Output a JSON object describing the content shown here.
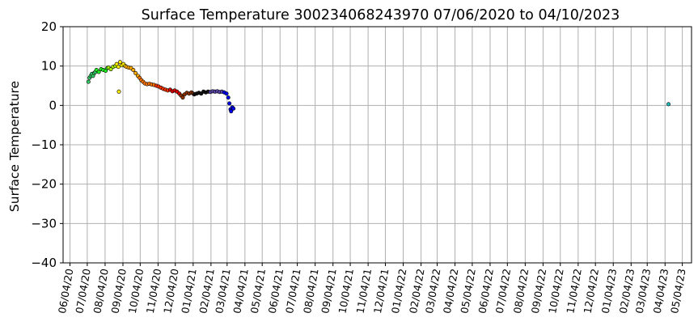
{
  "chart_data": {
    "type": "scatter",
    "title": "Surface Temperature 300234068243970  07/06/2020 to 04/10/2023",
    "xlabel": "",
    "ylabel": "Surface Temperature",
    "ylim": [
      -40,
      20
    ],
    "xlim": [
      "2020-05-23",
      "2023-05-20"
    ],
    "grid": true,
    "legend": "none",
    "yticks": [
      20,
      10,
      0,
      -10,
      -20,
      -30,
      -40
    ],
    "ytick_labels": [
      "20",
      "10",
      "0",
      "−10",
      "−20",
      "−30",
      "−40"
    ],
    "xticks": [
      "2020-06-04",
      "2020-07-04",
      "2020-08-04",
      "2020-09-04",
      "2020-10-04",
      "2020-11-04",
      "2020-12-04",
      "2021-01-04",
      "2021-02-04",
      "2021-03-04",
      "2021-04-04",
      "2021-05-04",
      "2021-06-04",
      "2021-07-04",
      "2021-08-04",
      "2021-09-04",
      "2021-10-04",
      "2021-11-04",
      "2021-12-04",
      "2022-01-04",
      "2022-02-04",
      "2022-03-04",
      "2022-04-04",
      "2022-05-04",
      "2022-06-04",
      "2022-07-04",
      "2022-08-04",
      "2022-09-04",
      "2022-10-04",
      "2022-11-04",
      "2022-12-04",
      "2023-01-04",
      "2023-02-04",
      "2023-03-04",
      "2023-04-04",
      "2023-05-04"
    ],
    "xtick_labels": [
      "06/04/20",
      "07/04/20",
      "08/04/20",
      "09/04/20",
      "10/04/20",
      "11/04/20",
      "12/04/20",
      "01/04/21",
      "02/04/21",
      "03/04/21",
      "04/04/21",
      "05/04/21",
      "06/04/21",
      "07/04/21",
      "08/04/21",
      "09/04/21",
      "10/04/21",
      "11/04/21",
      "12/04/21",
      "01/04/22",
      "02/04/22",
      "03/04/22",
      "04/04/22",
      "05/04/22",
      "06/04/22",
      "07/04/22",
      "08/04/22",
      "09/04/22",
      "10/04/22",
      "11/04/22",
      "12/04/22",
      "01/04/23",
      "02/04/23",
      "03/04/23",
      "04/04/23",
      "05/04/23"
    ],
    "series": [
      {
        "color": "#33cc66",
        "points": [
          [
            "2020-07-06",
            6.0
          ],
          [
            "2020-07-08",
            7.0
          ],
          [
            "2020-07-10",
            7.5
          ],
          [
            "2020-07-12",
            8.0
          ],
          [
            "2020-07-14",
            7.5
          ],
          [
            "2020-07-16",
            8.2
          ],
          [
            "2020-07-18",
            8.5
          ]
        ]
      },
      {
        "color": "#22ee22",
        "points": [
          [
            "2020-07-20",
            9.0
          ],
          [
            "2020-07-24",
            8.5
          ],
          [
            "2020-07-28",
            9.2
          ],
          [
            "2020-08-01",
            9.0
          ],
          [
            "2020-08-05",
            8.8
          ],
          [
            "2020-08-08",
            9.5
          ]
        ]
      },
      {
        "color": "#aaee00",
        "points": [
          [
            "2020-08-10",
            9.6
          ],
          [
            "2020-08-14",
            9.2
          ],
          [
            "2020-08-18",
            9.8
          ],
          [
            "2020-08-22",
            10.0
          ]
        ]
      },
      {
        "color": "#ffee00",
        "points": [
          [
            "2020-08-24",
            10.5
          ],
          [
            "2020-08-27",
            9.8
          ],
          [
            "2020-08-30",
            11.0
          ],
          [
            "2020-09-02",
            10.2
          ],
          [
            "2020-09-05",
            10.5
          ],
          [
            "2020-09-08",
            10.0
          ],
          [
            "2020-08-28",
            3.5
          ]
        ]
      },
      {
        "color": "#ffaa00",
        "points": [
          [
            "2020-09-10",
            9.8
          ],
          [
            "2020-09-14",
            9.6
          ],
          [
            "2020-09-18",
            9.5
          ],
          [
            "2020-09-22",
            9.0
          ],
          [
            "2020-09-26",
            8.2
          ],
          [
            "2020-09-30",
            7.5
          ]
        ]
      },
      {
        "color": "#ff7700",
        "points": [
          [
            "2020-10-03",
            7.0
          ],
          [
            "2020-10-06",
            6.4
          ],
          [
            "2020-10-09",
            6.0
          ],
          [
            "2020-10-12",
            5.6
          ],
          [
            "2020-10-16",
            5.4
          ],
          [
            "2020-10-20",
            5.5
          ],
          [
            "2020-10-24",
            5.3
          ],
          [
            "2020-10-28",
            5.2
          ]
        ]
      },
      {
        "color": "#ff3300",
        "points": [
          [
            "2020-11-01",
            5.0
          ],
          [
            "2020-11-05",
            4.8
          ],
          [
            "2020-11-09",
            4.5
          ],
          [
            "2020-11-13",
            4.2
          ],
          [
            "2020-11-17",
            4.0
          ],
          [
            "2020-11-21",
            3.8
          ]
        ]
      },
      {
        "color": "#dd0000",
        "points": [
          [
            "2020-11-25",
            4.0
          ],
          [
            "2020-11-29",
            3.6
          ],
          [
            "2020-12-03",
            3.8
          ],
          [
            "2020-12-07",
            3.5
          ],
          [
            "2020-12-11",
            3.0
          ]
        ]
      },
      {
        "color": "#8b3300",
        "points": [
          [
            "2020-12-14",
            2.5
          ],
          [
            "2020-12-17",
            2.0
          ],
          [
            "2020-12-20",
            2.8
          ],
          [
            "2020-12-24",
            3.2
          ],
          [
            "2020-12-28",
            3.0
          ],
          [
            "2021-01-01",
            3.3
          ],
          [
            "2021-01-04",
            3.0
          ]
        ]
      },
      {
        "color": "#111111",
        "points": [
          [
            "2021-01-06",
            2.8
          ],
          [
            "2021-01-10",
            3.0
          ],
          [
            "2021-01-14",
            3.2
          ],
          [
            "2021-01-18",
            3.0
          ],
          [
            "2021-01-22",
            3.5
          ],
          [
            "2021-01-26",
            3.3
          ],
          [
            "2021-01-30",
            3.5
          ]
        ]
      },
      {
        "color": "#5b45a8",
        "points": [
          [
            "2021-02-03",
            3.4
          ],
          [
            "2021-02-07",
            3.6
          ],
          [
            "2021-02-11",
            3.5
          ],
          [
            "2021-02-15",
            3.6
          ],
          [
            "2021-02-19",
            3.4
          ],
          [
            "2021-02-23",
            3.5
          ]
        ]
      },
      {
        "color": "#0000ee",
        "points": [
          [
            "2021-02-27",
            3.3
          ],
          [
            "2021-03-03",
            3.0
          ],
          [
            "2021-03-06",
            2.0
          ],
          [
            "2021-03-08",
            0.5
          ],
          [
            "2021-03-10",
            -1.0
          ],
          [
            "2021-03-11",
            -1.5
          ],
          [
            "2021-03-13",
            -0.5
          ],
          [
            "2021-03-15",
            -0.8
          ]
        ]
      },
      {
        "color": "#22bbbb",
        "points": [
          [
            "2023-04-10",
            0.3
          ]
        ]
      }
    ]
  }
}
